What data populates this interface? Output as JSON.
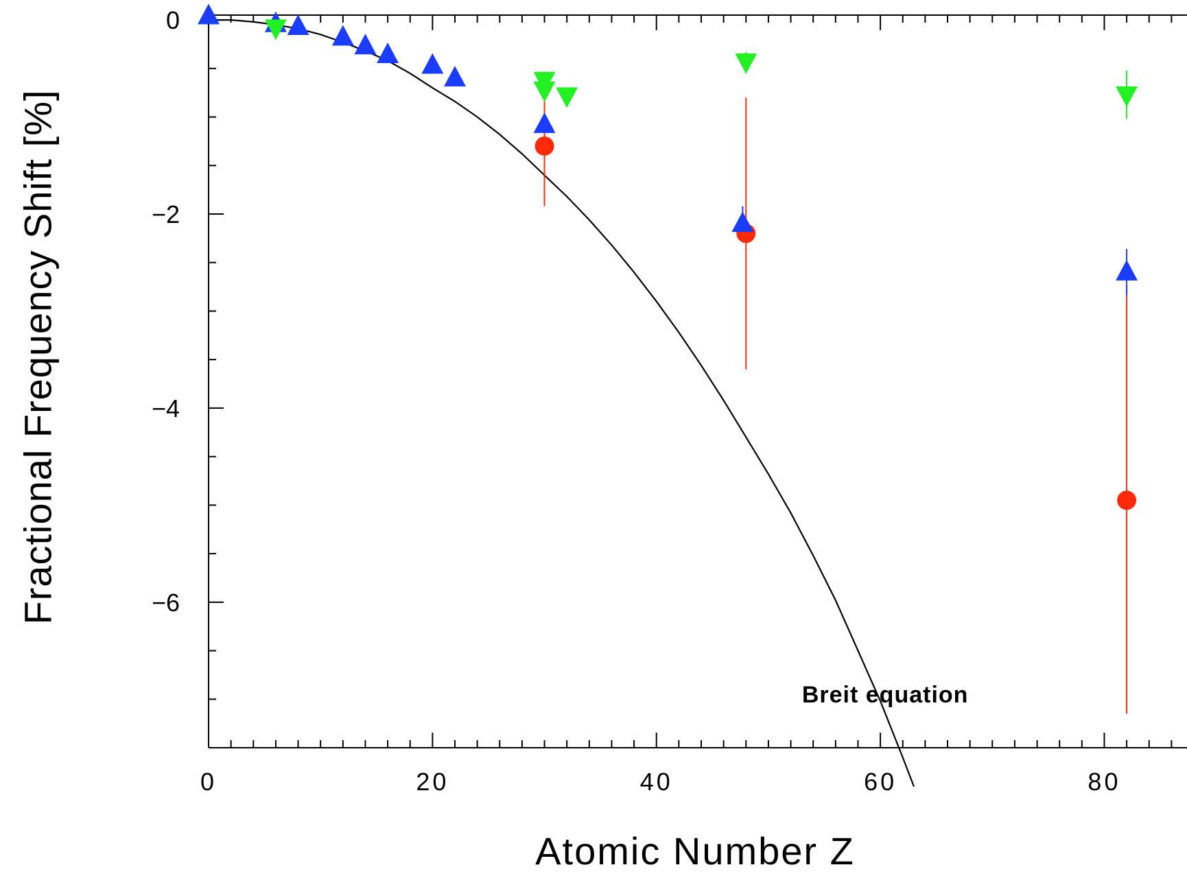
{
  "chart_data": {
    "type": "scatter",
    "xlabel": "Atomic Number Z",
    "ylabel": "Fractional Frequency Shift [%]",
    "xlim": [
      0,
      88
    ],
    "ylim": [
      -7.5,
      0.05
    ],
    "x_ticks": [
      0,
      20,
      40,
      60,
      80
    ],
    "y_ticks": [
      0,
      -2,
      -4,
      -6
    ],
    "x_tick_labels": [
      "0",
      "20",
      "40",
      "60",
      "80"
    ],
    "y_tick_labels": [
      "0",
      "−2",
      "−4",
      "−6"
    ],
    "grid": false,
    "annotations": [
      {
        "text": "Breit  equation",
        "x": 53,
        "y": -6.95
      }
    ],
    "series": [
      {
        "marker": "triangle-up",
        "color": "#1a3cff",
        "points": [
          {
            "x": 0,
            "y": 0.04
          },
          {
            "x": 6,
            "y": -0.04
          },
          {
            "x": 8,
            "y": -0.07
          },
          {
            "x": 12,
            "y": -0.18
          },
          {
            "x": 14,
            "y": -0.27
          },
          {
            "x": 16,
            "y": -0.36
          },
          {
            "x": 20,
            "y": -0.47
          },
          {
            "x": 22,
            "y": -0.6
          },
          {
            "x": 30,
            "y": -1.08
          },
          {
            "x": 47.7,
            "y": -2.1,
            "err": 0.18
          },
          {
            "x": 82,
            "y": -2.6,
            "err": 0.24
          }
        ]
      },
      {
        "marker": "triangle-down",
        "color": "#22f022",
        "points": [
          {
            "x": 6,
            "y": -0.08
          },
          {
            "x": 30,
            "y": -0.62
          },
          {
            "x": 30,
            "y": -0.72
          },
          {
            "x": 32,
            "y": -0.78
          },
          {
            "x": 48,
            "y": -0.43,
            "err": 0.1
          },
          {
            "x": 82,
            "y": -0.77,
            "err": 0.25
          }
        ]
      },
      {
        "marker": "circle",
        "color": "#ff2a0a",
        "points": [
          {
            "x": 30,
            "y": -1.3,
            "err": 0.62
          },
          {
            "x": 48,
            "y": -2.2,
            "err": 1.4
          },
          {
            "x": 82,
            "y": -4.95,
            "err": 2.2
          }
        ]
      }
    ],
    "curve": {
      "color": "#000000",
      "points": [
        [
          0,
          0
        ],
        [
          2,
          0
        ],
        [
          4,
          -0.02
        ],
        [
          6,
          -0.05
        ],
        [
          8,
          -0.09
        ],
        [
          10,
          -0.15
        ],
        [
          12,
          -0.23
        ],
        [
          14,
          -0.32
        ],
        [
          16,
          -0.42
        ],
        [
          18,
          -0.55
        ],
        [
          20,
          -0.7
        ],
        [
          22,
          -0.84
        ],
        [
          24,
          -1.0
        ],
        [
          26,
          -1.18
        ],
        [
          28,
          -1.38
        ],
        [
          30,
          -1.6
        ],
        [
          32,
          -1.82
        ],
        [
          34,
          -2.06
        ],
        [
          36,
          -2.32
        ],
        [
          38,
          -2.6
        ],
        [
          40,
          -2.9
        ],
        [
          42,
          -3.22
        ],
        [
          44,
          -3.56
        ],
        [
          46,
          -3.92
        ],
        [
          48,
          -4.3
        ],
        [
          50,
          -4.68
        ],
        [
          52,
          -5.08
        ],
        [
          54,
          -5.52
        ],
        [
          56,
          -5.98
        ],
        [
          58,
          -6.5
        ],
        [
          60,
          -7.02
        ],
        [
          62,
          -7.6
        ],
        [
          63,
          -7.9
        ]
      ]
    }
  }
}
